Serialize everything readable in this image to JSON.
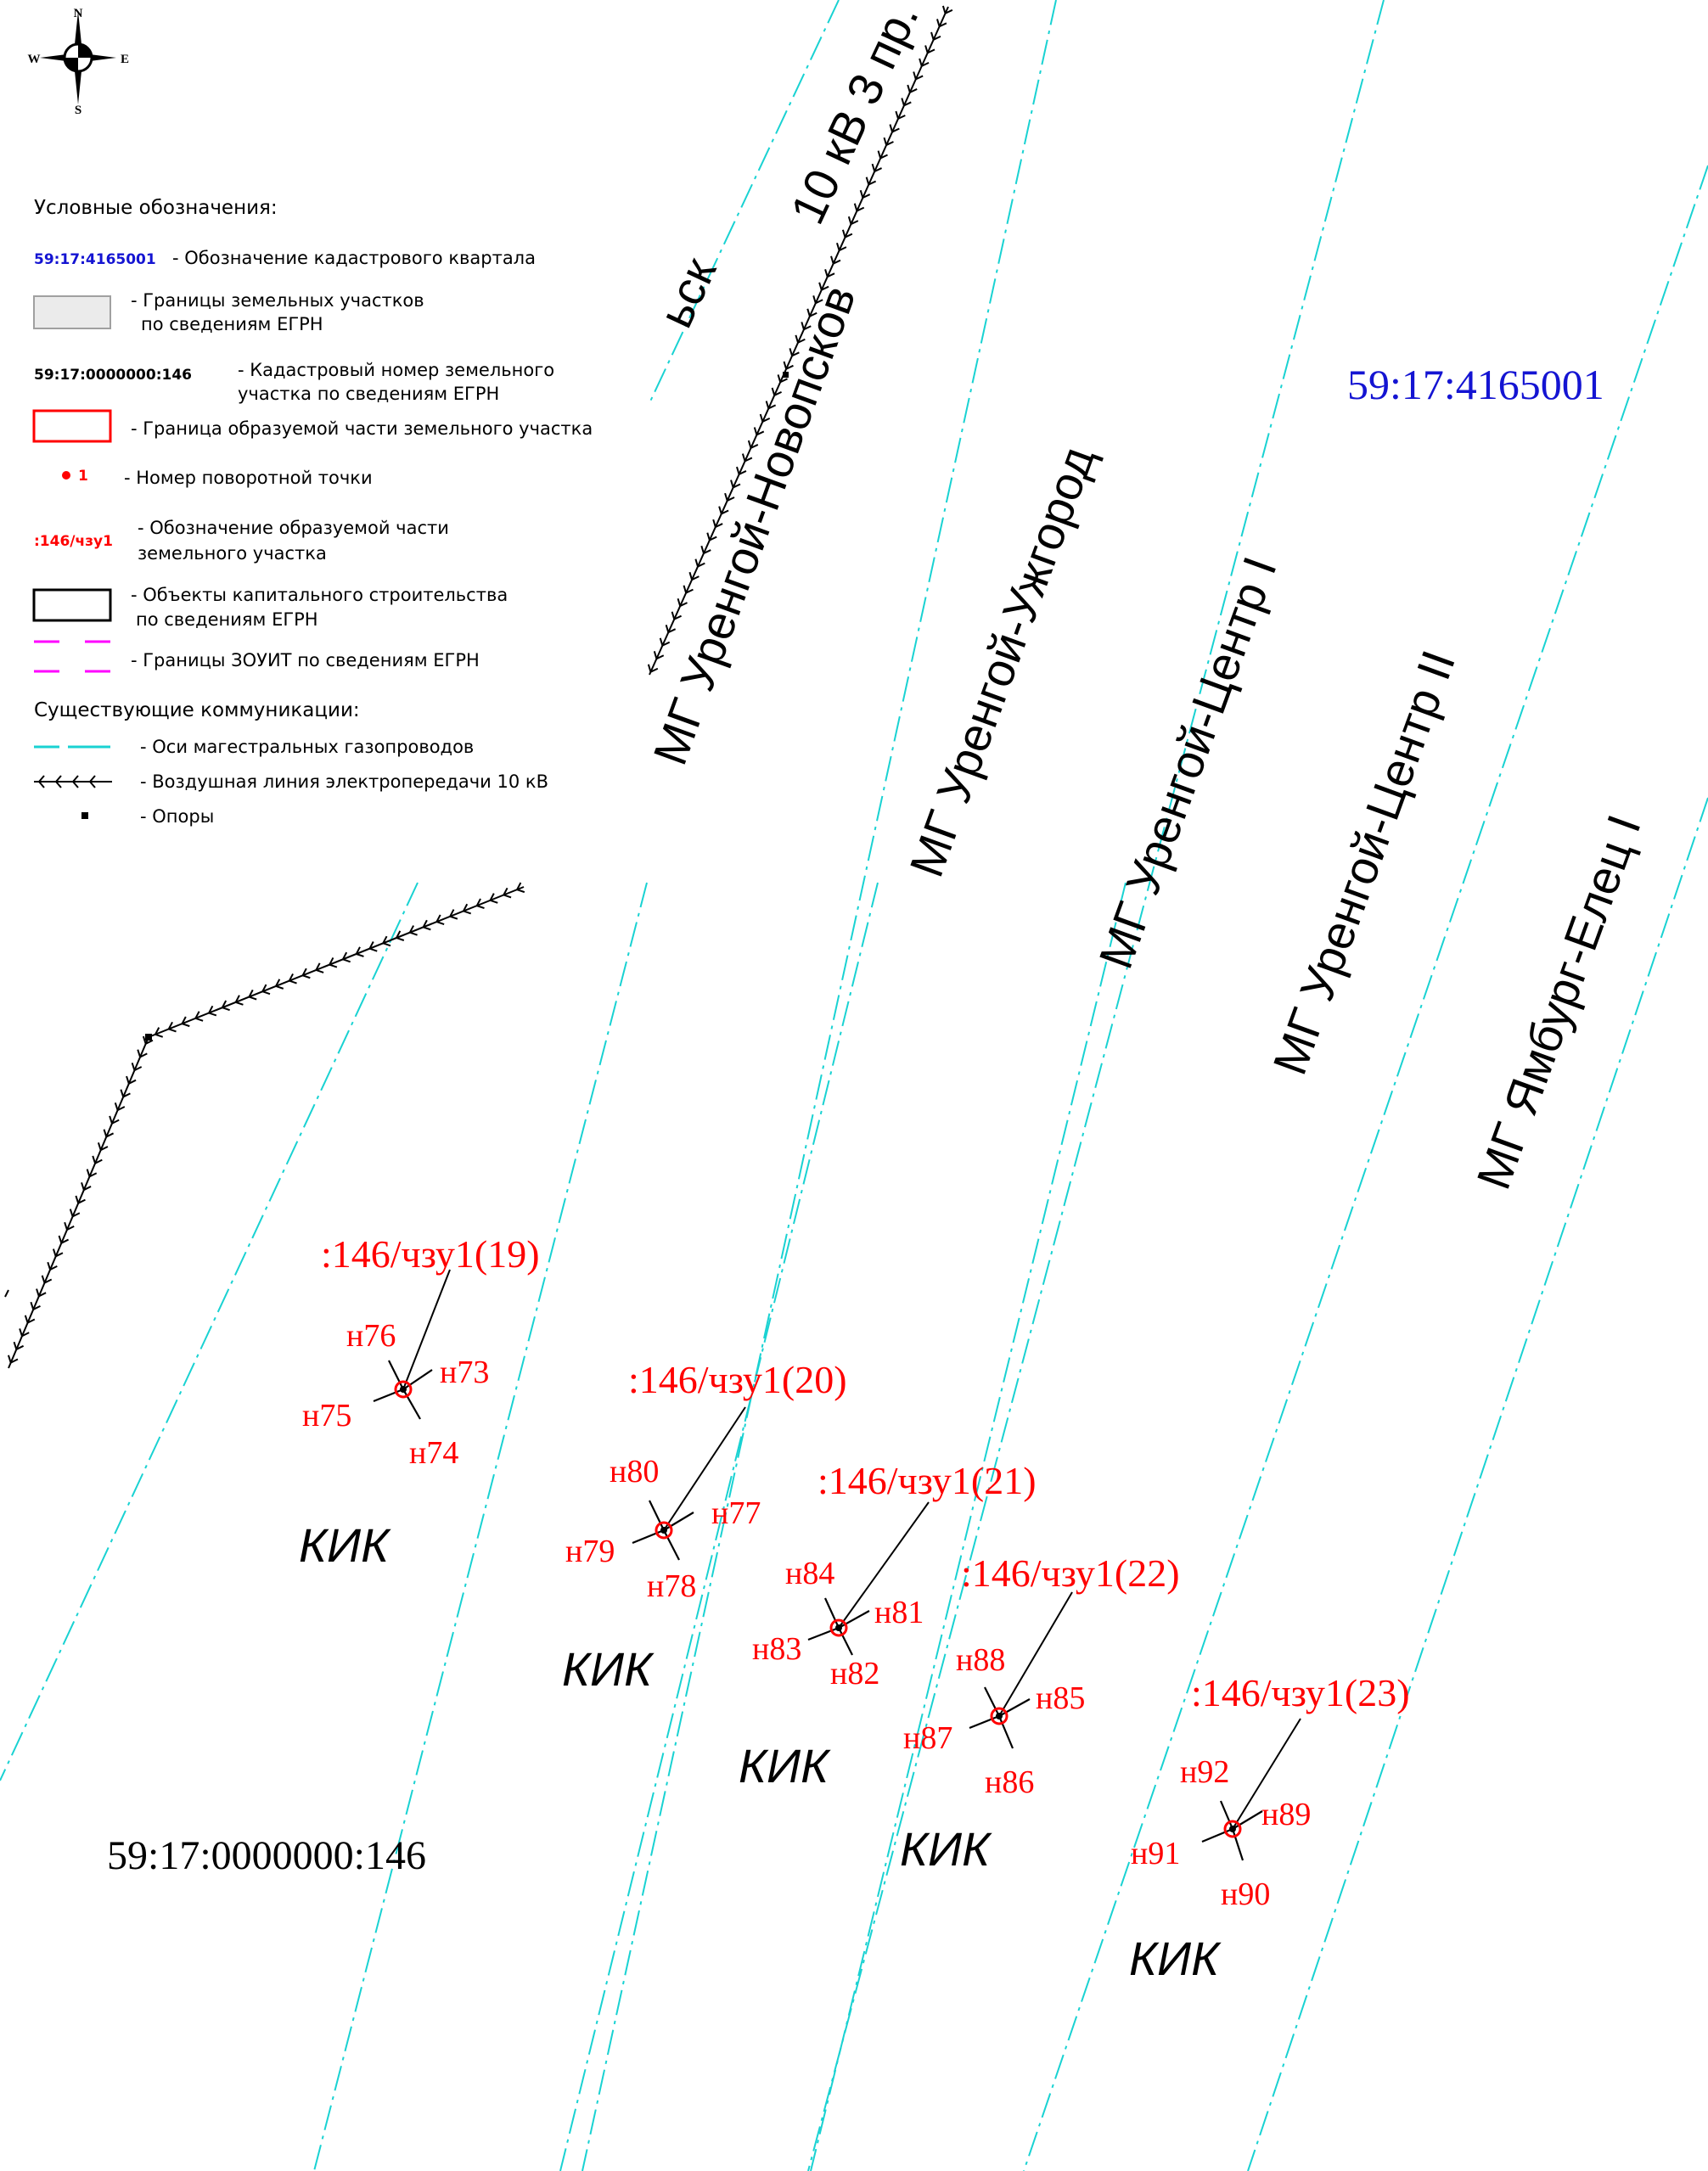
{
  "compass": {
    "n": "N",
    "s": "S",
    "w": "W",
    "e": "E"
  },
  "legend": {
    "title": "Условные обозначения:",
    "items": [
      {
        "code": "59:17:4165001",
        "code_color": "#1414d2",
        "text": [
          "- Обозначение кадастрового квартала"
        ]
      },
      {
        "symbol": "grey-box",
        "text": [
          "- Границы земельных участков",
          "по сведениям ЕГРН"
        ]
      },
      {
        "code": "59:17:0000000:146",
        "code_color": "#000000",
        "text": [
          "- Кадастровый номер земельного",
          "участка по сведениям ЕГРН"
        ]
      },
      {
        "symbol": "red-box",
        "text": [
          "- Граница образуемой части земельного участка"
        ]
      },
      {
        "code": "1",
        "code_color": "#ff0000",
        "symbol": "red-dot",
        "text": [
          "- Номер поворотной точки"
        ]
      },
      {
        "code": ":146/чзу1",
        "code_color": "#ff0000",
        "text": [
          "- Обозначение образуемой части",
          "земельного участка"
        ]
      },
      {
        "symbol": "black-box",
        "text": [
          "- Объекты капитального строительства",
          "по сведениям ЕГРН"
        ]
      },
      {
        "symbol": "magenta-dash",
        "text": [
          "- Границы ЗОУИТ по сведениям ЕГРН"
        ]
      }
    ],
    "subtitle": "Существующие коммуникации:",
    "comm_items": [
      {
        "symbol": "cyan-dash",
        "text": "- Оси магестральных газопроводов"
      },
      {
        "symbol": "powerline",
        "text": "- Воздушная линия электропередачи 10 кВ"
      },
      {
        "symbol": "pole",
        "text": "- Опоры"
      }
    ]
  },
  "map": {
    "quarter": "59:17:4165001",
    "parcel": "59:17:0000000:146",
    "powerline_label": "10 кВ 3 пр.",
    "pipelines": [
      {
        "label": "МГ Уренгой-Новопсков"
      },
      {
        "label": "МГ Уренгой-Ужгород"
      },
      {
        "label": "МГ Уренгой-Центр I"
      },
      {
        "label": "МГ Уренгой-Центр II"
      },
      {
        "label": "МГ Ямбург-Елец I"
      }
    ],
    "cut_label": "ьск",
    "kik_label": "КИК",
    "parts": [
      {
        "label": ":146/чзу1(19)",
        "points": [
          "н73",
          "н74",
          "н75",
          "н76"
        ]
      },
      {
        "label": ":146/чзу1(20)",
        "points": [
          "н77",
          "н78",
          "н79",
          "н80"
        ]
      },
      {
        "label": ":146/чзу1(21)",
        "points": [
          "н81",
          "н82",
          "н83",
          "н84"
        ]
      },
      {
        "label": ":146/чзу1(22)",
        "points": [
          "н85",
          "н86",
          "н87",
          "н88"
        ]
      },
      {
        "label": ":146/чзу1(23)",
        "points": [
          "н89",
          "н90",
          "н91",
          "н92"
        ]
      }
    ]
  },
  "colors": {
    "pipe": "#19d2d2",
    "accent_red": "#ff0000",
    "quarter_blue": "#1414d2",
    "zouit": "#ff00ff"
  }
}
